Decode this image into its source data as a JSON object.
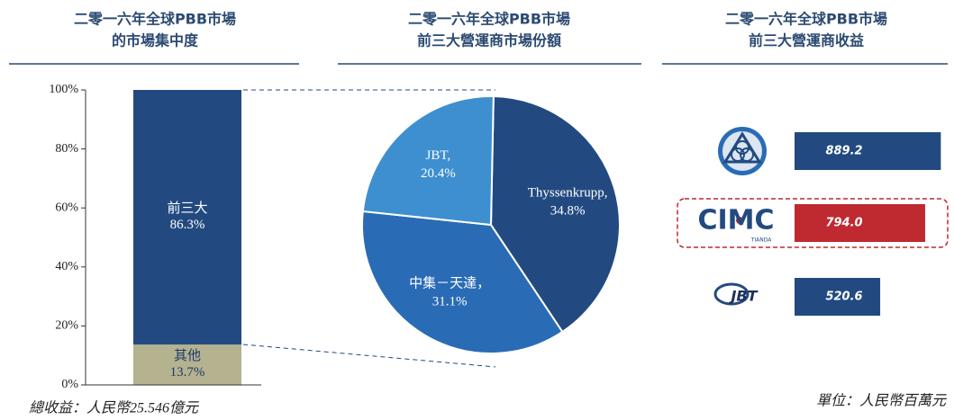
{
  "chart_data": [
    {
      "type": "bar",
      "stacked": true,
      "title": [
        "二零一六年全球PBB市場",
        "的市場集中度"
      ],
      "series": [
        {
          "name": "其他",
          "color": "#b4b28f",
          "values": [
            13.7
          ],
          "value_labels": [
            "13.7%"
          ]
        },
        {
          "name": "前三大",
          "color": "#234a80",
          "values": [
            86.3
          ],
          "value_labels": [
            "86.3%"
          ]
        }
      ],
      "ylim": [
        0,
        100
      ],
      "yticks": [
        {
          "value": 0,
          "label": "0%"
        },
        {
          "value": 20,
          "label": "20%"
        },
        {
          "value": 40,
          "label": "40%"
        },
        {
          "value": 60,
          "label": "60%"
        },
        {
          "value": 80,
          "label": "80%"
        },
        {
          "value": 100,
          "label": "100%"
        }
      ],
      "footnote": "總收益：人民幣25.546億元"
    },
    {
      "type": "pie",
      "title": [
        "二零一六年全球PBB市場",
        "前三大營運商市場份額"
      ],
      "categories": [
        "Thyssenkrupp,",
        "中集－天達，",
        "JBT,"
      ],
      "values": [
        34.8,
        31.1,
        20.4
      ],
      "value_labels": [
        "34.8%",
        "31.1%",
        "20.4%"
      ],
      "colors": [
        "#234a80",
        "#2a6bb5",
        "#3e8fd0"
      ]
    },
    {
      "type": "hbar",
      "title": [
        "二零一六年全球PBB市場",
        "前三大營運商收益"
      ],
      "categories": [
        null,
        "CIMC",
        "JBT"
      ],
      "sublabels": [
        null,
        "TIANDA",
        null
      ],
      "values": [
        889.2,
        794.0,
        520.6
      ],
      "value_labels": [
        "889.2",
        "794.0",
        "520.6"
      ],
      "colors": [
        "#234a80",
        "#be2a30",
        "#234a80"
      ],
      "highlight": 1,
      "footnote": "單位：人民幣百萬元"
    }
  ]
}
